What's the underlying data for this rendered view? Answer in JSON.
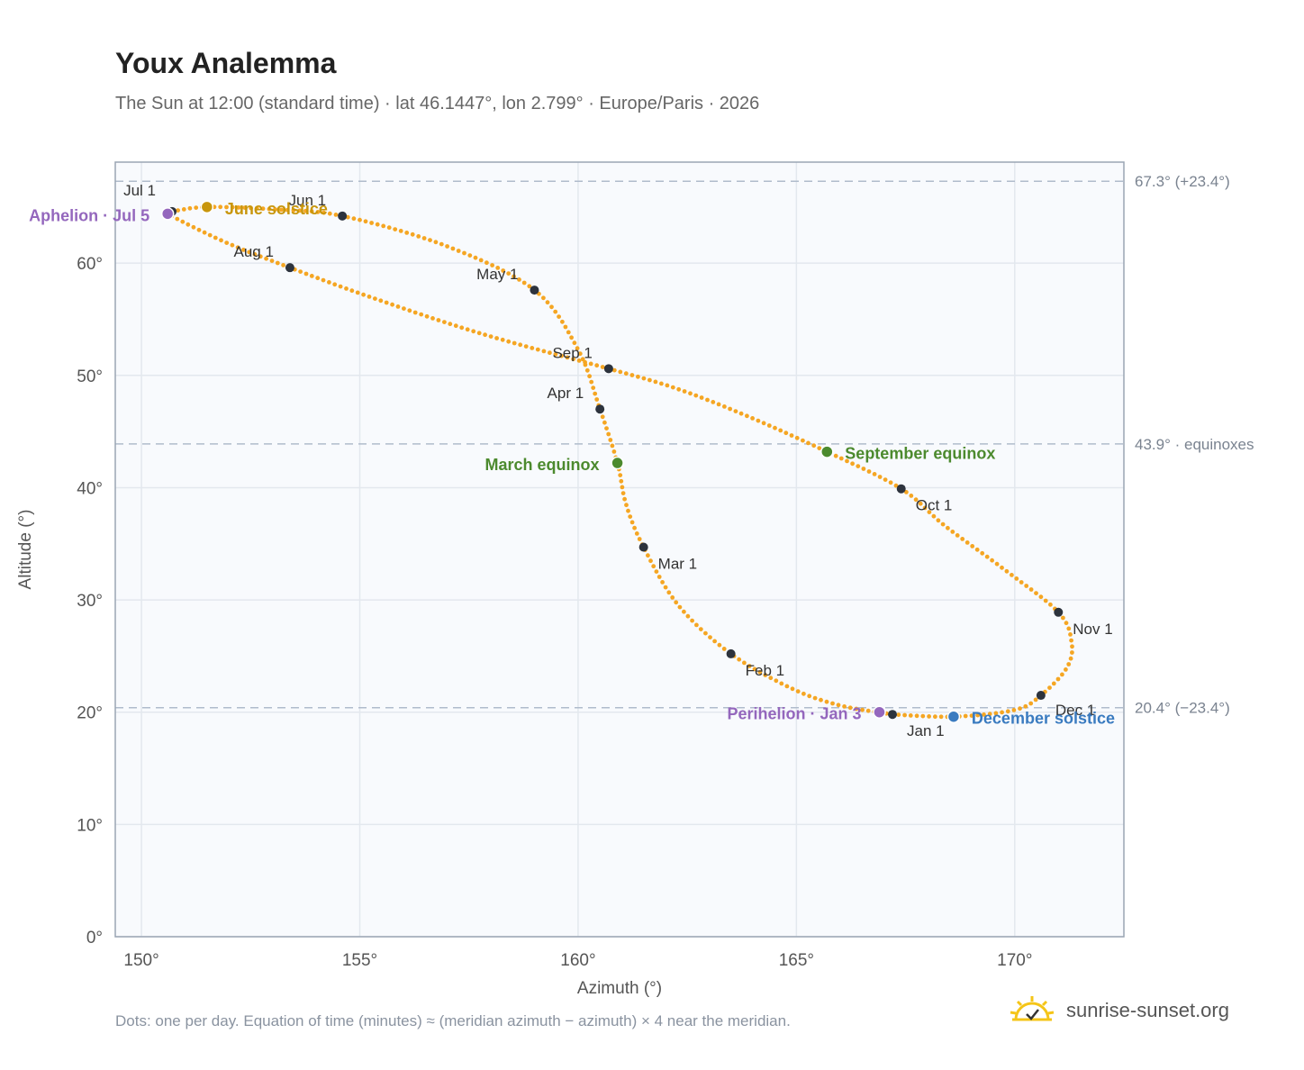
{
  "header": {
    "title": "Youx Analemma",
    "subtitle": "The Sun at 12:00 (standard time) · lat 46.1447°, lon 2.799° · Europe/Paris · 2026"
  },
  "footer": {
    "note": "Dots: one per day. Equation of time (minutes) ≈ (meridian azimuth − azimuth) × 4 near the meridian.",
    "brand": "sunrise-sunset.org"
  },
  "colors": {
    "curve": "#f5a623",
    "month_dot": "#2d333d",
    "june": "#c8960c",
    "equinox": "#4c8a2e",
    "december": "#3a7bc0",
    "apsis": "#9467bd",
    "refline": "#b0bccc",
    "plot_bg": "#f8fafd",
    "grid": "#e3e8ee",
    "frame": "#9aa5b4"
  },
  "chart_data": {
    "type": "scatter",
    "xlabel": "Azimuth (°)",
    "ylabel": "Altitude (°)",
    "xlim": [
      149.4,
      172.5
    ],
    "ylim": [
      0,
      69
    ],
    "xticks": [
      150,
      155,
      160,
      165,
      170
    ],
    "yticks": [
      0,
      10,
      20,
      30,
      40,
      50,
      60
    ],
    "xtick_labels": [
      "150°",
      "155°",
      "160°",
      "165°",
      "170°"
    ],
    "ytick_labels": [
      "0°",
      "10°",
      "20°",
      "30°",
      "40°",
      "50°",
      "60°"
    ],
    "grid": true,
    "reference_lines": [
      {
        "y": 67.3,
        "label": "67.3° (+23.4°)"
      },
      {
        "y": 43.9,
        "label": "43.9° · equinoxes"
      },
      {
        "y": 20.4,
        "label": "20.4° (−23.4°)"
      }
    ],
    "month_markers": [
      {
        "label": "Jan 1",
        "az": 167.2,
        "alt": 19.8
      },
      {
        "label": "Feb 1",
        "az": 163.5,
        "alt": 25.2
      },
      {
        "label": "Mar 1",
        "az": 161.5,
        "alt": 34.7
      },
      {
        "label": "Apr 1",
        "az": 160.5,
        "alt": 47.0
      },
      {
        "label": "May 1",
        "az": 159.0,
        "alt": 57.6
      },
      {
        "label": "Jun 1",
        "az": 154.6,
        "alt": 64.2
      },
      {
        "label": "Jul 1",
        "az": 150.7,
        "alt": 64.6
      },
      {
        "label": "Aug 1",
        "az": 153.4,
        "alt": 59.6
      },
      {
        "label": "Sep 1",
        "az": 160.7,
        "alt": 50.6
      },
      {
        "label": "Oct 1",
        "az": 167.4,
        "alt": 39.9
      },
      {
        "label": "Nov 1",
        "az": 171.0,
        "alt": 28.9
      },
      {
        "label": "Dec 1",
        "az": 170.6,
        "alt": 21.5
      }
    ],
    "events": [
      {
        "label": "June solstice",
        "az": 151.5,
        "alt": 65.0,
        "color": "#c8960c"
      },
      {
        "label": "March equinox",
        "az": 160.9,
        "alt": 42.2,
        "color": "#4c8a2e"
      },
      {
        "label": "September equinox",
        "az": 165.7,
        "alt": 43.2,
        "color": "#4c8a2e"
      },
      {
        "label": "December solstice",
        "az": 168.6,
        "alt": 19.6,
        "color": "#3a7bc0"
      },
      {
        "label": "Aphelion · Jul 5",
        "az": 150.6,
        "alt": 64.4,
        "color": "#9467bd"
      },
      {
        "label": "Perihelion · Jan 3",
        "az": 166.9,
        "alt": 20.0,
        "color": "#9467bd"
      }
    ],
    "path_keypoints": [
      [
        167.2,
        19.8
      ],
      [
        168.6,
        19.6
      ],
      [
        170.0,
        20.2
      ],
      [
        170.6,
        21.5
      ],
      [
        171.2,
        24.0
      ],
      [
        171.3,
        26.3
      ],
      [
        171.0,
        28.9
      ],
      [
        169.8,
        32.6
      ],
      [
        168.4,
        36.6
      ],
      [
        167.4,
        39.9
      ],
      [
        165.7,
        43.2
      ],
      [
        163.8,
        46.5
      ],
      [
        162.2,
        48.9
      ],
      [
        160.7,
        50.6
      ],
      [
        157.8,
        53.7
      ],
      [
        155.3,
        56.9
      ],
      [
        153.4,
        59.6
      ],
      [
        151.9,
        61.9
      ],
      [
        150.6,
        64.4
      ],
      [
        150.7,
        64.6
      ],
      [
        151.5,
        65.0
      ],
      [
        153.0,
        64.8
      ],
      [
        154.6,
        64.2
      ],
      [
        157.0,
        61.5
      ],
      [
        159.0,
        57.6
      ],
      [
        160.0,
        52.3
      ],
      [
        160.5,
        47.0
      ],
      [
        160.9,
        42.2
      ],
      [
        161.1,
        38.5
      ],
      [
        161.5,
        34.7
      ],
      [
        162.3,
        29.5
      ],
      [
        163.5,
        25.2
      ],
      [
        164.9,
        22.1
      ],
      [
        166.0,
        20.6
      ],
      [
        167.2,
        19.8
      ]
    ]
  }
}
